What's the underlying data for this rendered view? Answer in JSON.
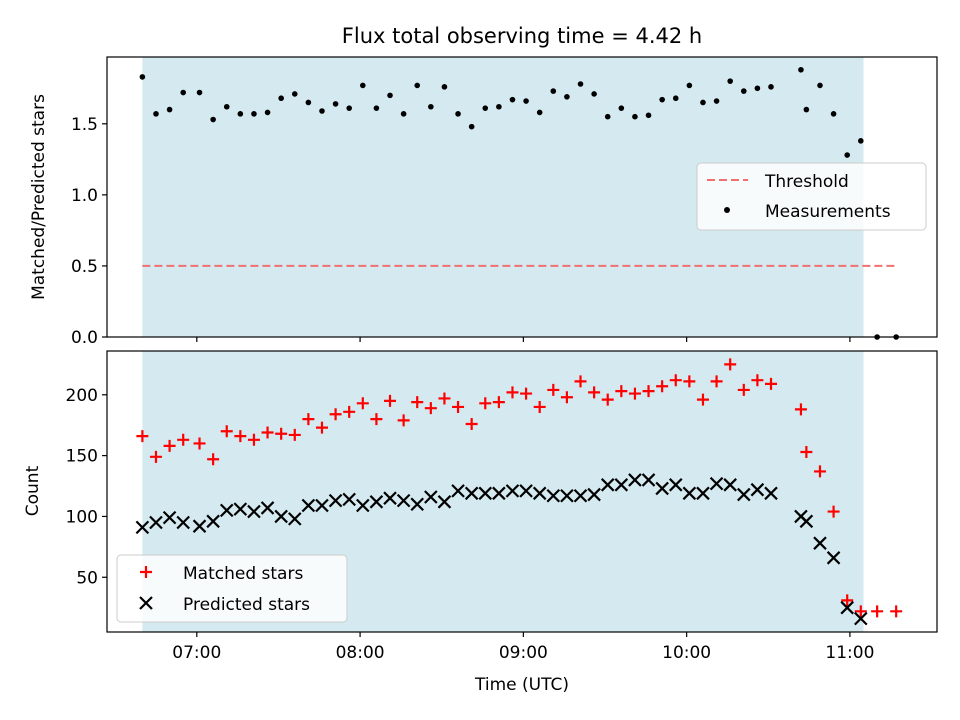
{
  "chart_data": [
    {
      "type": "scatter",
      "title": "Flux total observing time = 4.42 h",
      "ylabel": "Matched/Predicted stars",
      "xlabel": "",
      "xlim": [
        "06:27",
        "11:32"
      ],
      "ylim": [
        0,
        1.97
      ],
      "y_ticks": [
        "0.0",
        "0.5",
        "1.0",
        "1.5"
      ],
      "x_tick_times": [
        "07:00",
        "08:00",
        "09:00",
        "10:00",
        "11:00"
      ],
      "shaded_interval": [
        "06:40",
        "11:05"
      ],
      "shade_color": "#d4eaf0",
      "legend": {
        "placement": "center-right",
        "entries": [
          "Threshold",
          "Measurements"
        ]
      },
      "series": [
        {
          "name": "Threshold",
          "style": "dashed-line",
          "color": "#f07070",
          "points": [
            [
              "06:40",
              0.5
            ],
            [
              "11:17",
              0.5
            ]
          ]
        },
        {
          "name": "Measurements",
          "style": "dot",
          "color": "#000000",
          "points": [
            [
              "06:40",
              1.83
            ],
            [
              "06:45",
              1.57
            ],
            [
              "06:50",
              1.6
            ],
            [
              "06:55",
              1.72
            ],
            [
              "07:01",
              1.72
            ],
            [
              "07:06",
              1.53
            ],
            [
              "07:11",
              1.62
            ],
            [
              "07:16",
              1.57
            ],
            [
              "07:21",
              1.57
            ],
            [
              "07:26",
              1.58
            ],
            [
              "07:31",
              1.68
            ],
            [
              "07:36",
              1.71
            ],
            [
              "07:41",
              1.65
            ],
            [
              "07:46",
              1.59
            ],
            [
              "07:51",
              1.64
            ],
            [
              "07:56",
              1.61
            ],
            [
              "08:01",
              1.77
            ],
            [
              "08:06",
              1.61
            ],
            [
              "08:11",
              1.7
            ],
            [
              "08:16",
              1.57
            ],
            [
              "08:21",
              1.77
            ],
            [
              "08:26",
              1.62
            ],
            [
              "08:31",
              1.76
            ],
            [
              "08:36",
              1.57
            ],
            [
              "08:41",
              1.48
            ],
            [
              "08:46",
              1.61
            ],
            [
              "08:51",
              1.62
            ],
            [
              "08:56",
              1.67
            ],
            [
              "09:01",
              1.66
            ],
            [
              "09:06",
              1.58
            ],
            [
              "09:11",
              1.73
            ],
            [
              "09:16",
              1.69
            ],
            [
              "09:21",
              1.78
            ],
            [
              "09:26",
              1.71
            ],
            [
              "09:31",
              1.55
            ],
            [
              "09:36",
              1.61
            ],
            [
              "09:41",
              1.55
            ],
            [
              "09:46",
              1.56
            ],
            [
              "09:51",
              1.67
            ],
            [
              "09:56",
              1.68
            ],
            [
              "10:01",
              1.77
            ],
            [
              "10:06",
              1.65
            ],
            [
              "10:11",
              1.66
            ],
            [
              "10:16",
              1.8
            ],
            [
              "10:21",
              1.73
            ],
            [
              "10:26",
              1.75
            ],
            [
              "10:31",
              1.76
            ],
            [
              "10:42",
              1.88
            ],
            [
              "10:44",
              1.6
            ],
            [
              "10:49",
              1.77
            ],
            [
              "10:54",
              1.57
            ],
            [
              "10:59",
              1.28
            ],
            [
              "11:04",
              1.38
            ],
            [
              "11:10",
              0.0
            ],
            [
              "11:17",
              0.0
            ]
          ]
        }
      ]
    },
    {
      "type": "scatter",
      "title": "",
      "ylabel": "Count",
      "xlabel": "Time (UTC)",
      "xlim": [
        "06:27",
        "11:32"
      ],
      "ylim": [
        5,
        236
      ],
      "y_ticks": [
        "50",
        "100",
        "150",
        "200"
      ],
      "x_tick_labels": [
        "07:00",
        "08:00",
        "09:00",
        "10:00",
        "11:00"
      ],
      "shaded_interval": [
        "06:40",
        "11:05"
      ],
      "shade_color": "#d4eaf0",
      "legend": {
        "placement": "lower-left",
        "entries": [
          "Matched stars",
          "Predicted stars"
        ]
      },
      "series": [
        {
          "name": "Matched stars",
          "marker": "+",
          "color": "#ff0000",
          "points": [
            [
              "06:40",
              166
            ],
            [
              "06:45",
              149
            ],
            [
              "06:50",
              158
            ],
            [
              "06:55",
              163
            ],
            [
              "07:01",
              160
            ],
            [
              "07:06",
              147
            ],
            [
              "07:11",
              170
            ],
            [
              "07:16",
              166
            ],
            [
              "07:21",
              163
            ],
            [
              "07:26",
              169
            ],
            [
              "07:31",
              168
            ],
            [
              "07:36",
              167
            ],
            [
              "07:41",
              180
            ],
            [
              "07:46",
              173
            ],
            [
              "07:51",
              184
            ],
            [
              "07:56",
              186
            ],
            [
              "08:01",
              193
            ],
            [
              "08:06",
              180
            ],
            [
              "08:11",
              195
            ],
            [
              "08:16",
              179
            ],
            [
              "08:21",
              194
            ],
            [
              "08:26",
              189
            ],
            [
              "08:31",
              197
            ],
            [
              "08:36",
              190
            ],
            [
              "08:41",
              176
            ],
            [
              "08:46",
              193
            ],
            [
              "08:51",
              194
            ],
            [
              "08:56",
              202
            ],
            [
              "09:01",
              201
            ],
            [
              "09:06",
              190
            ],
            [
              "09:11",
              204
            ],
            [
              "09:16",
              198
            ],
            [
              "09:21",
              211
            ],
            [
              "09:26",
              202
            ],
            [
              "09:31",
              196
            ],
            [
              "09:36",
              203
            ],
            [
              "09:41",
              201
            ],
            [
              "09:46",
              203
            ],
            [
              "09:51",
              207
            ],
            [
              "09:56",
              212
            ],
            [
              "10:01",
              211
            ],
            [
              "10:06",
              196
            ],
            [
              "10:11",
              211
            ],
            [
              "10:16",
              225
            ],
            [
              "10:21",
              204
            ],
            [
              "10:26",
              212
            ],
            [
              "10:31",
              209
            ],
            [
              "10:42",
              188
            ],
            [
              "10:44",
              153
            ],
            [
              "10:49",
              137
            ],
            [
              "10:54",
              104
            ],
            [
              "10:59",
              31
            ],
            [
              "11:04",
              22
            ],
            [
              "11:10",
              22
            ],
            [
              "11:17",
              22
            ]
          ]
        },
        {
          "name": "Predicted stars",
          "marker": "x",
          "color": "#000000",
          "points": [
            [
              "06:40",
              91
            ],
            [
              "06:45",
              95
            ],
            [
              "06:50",
              99
            ],
            [
              "06:55",
              95
            ],
            [
              "07:01",
              92
            ],
            [
              "07:06",
              96
            ],
            [
              "07:11",
              105
            ],
            [
              "07:16",
              106
            ],
            [
              "07:21",
              104
            ],
            [
              "07:26",
              107
            ],
            [
              "07:31",
              100
            ],
            [
              "07:36",
              98
            ],
            [
              "07:41",
              109
            ],
            [
              "07:46",
              109
            ],
            [
              "07:51",
              113
            ],
            [
              "07:56",
              114
            ],
            [
              "08:01",
              109
            ],
            [
              "08:06",
              112
            ],
            [
              "08:11",
              115
            ],
            [
              "08:16",
              113
            ],
            [
              "08:21",
              110
            ],
            [
              "08:26",
              116
            ],
            [
              "08:31",
              112
            ],
            [
              "08:36",
              121
            ],
            [
              "08:41",
              119
            ],
            [
              "08:46",
              119
            ],
            [
              "08:51",
              119
            ],
            [
              "08:56",
              121
            ],
            [
              "09:01",
              121
            ],
            [
              "09:06",
              119
            ],
            [
              "09:11",
              117
            ],
            [
              "09:16",
              117
            ],
            [
              "09:21",
              117
            ],
            [
              "09:26",
              118
            ],
            [
              "09:31",
              126
            ],
            [
              "09:36",
              126
            ],
            [
              "09:41",
              130
            ],
            [
              "09:46",
              130
            ],
            [
              "09:51",
              123
            ],
            [
              "09:56",
              126
            ],
            [
              "10:01",
              119
            ],
            [
              "10:06",
              119
            ],
            [
              "10:11",
              127
            ],
            [
              "10:16",
              126
            ],
            [
              "10:21",
              118
            ],
            [
              "10:26",
              122
            ],
            [
              "10:31",
              119
            ],
            [
              "10:42",
              100
            ],
            [
              "10:44",
              96
            ],
            [
              "10:49",
              78
            ],
            [
              "10:54",
              66
            ],
            [
              "10:59",
              25
            ],
            [
              "11:04",
              16
            ]
          ]
        }
      ]
    }
  ]
}
